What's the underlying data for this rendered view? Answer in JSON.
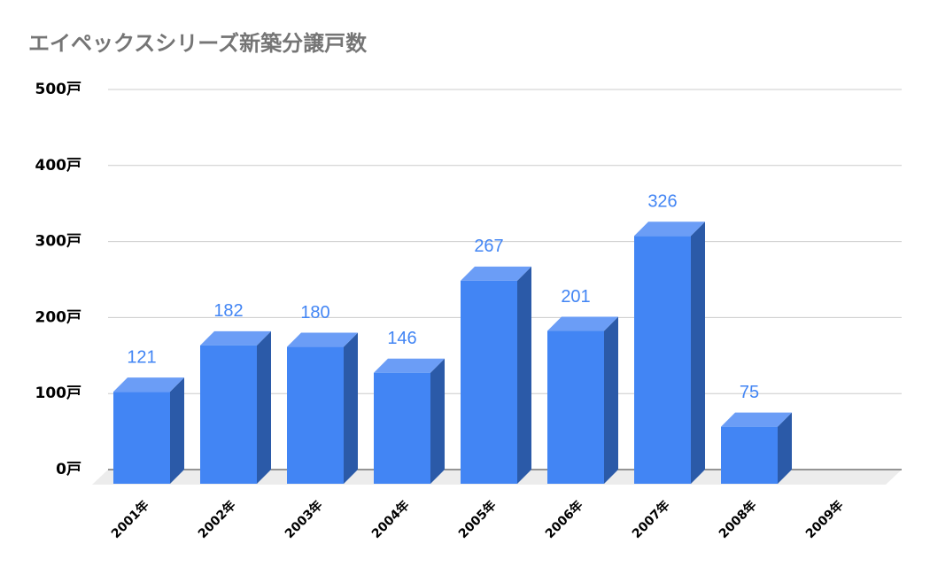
{
  "chart_data": {
    "type": "bar3d",
    "title": "エイペックスシリーズ新築分譲戸数",
    "categories": [
      "2001年",
      "2002年",
      "2003年",
      "2004年",
      "2005年",
      "2006年",
      "2007年",
      "2008年",
      "2009年"
    ],
    "values": [
      121,
      182,
      180,
      146,
      267,
      201,
      326,
      75,
      null
    ],
    "color": "#4285f4",
    "ylim": [
      0,
      500
    ],
    "yticks": [
      {
        "value": 0,
        "label": "0戸"
      },
      {
        "value": 100,
        "label": "100戸"
      },
      {
        "value": 200,
        "label": "200戸"
      },
      {
        "value": 300,
        "label": "300戸"
      },
      {
        "value": 400,
        "label": "400戸"
      },
      {
        "value": 500,
        "label": "500戸"
      }
    ],
    "grid": true
  }
}
